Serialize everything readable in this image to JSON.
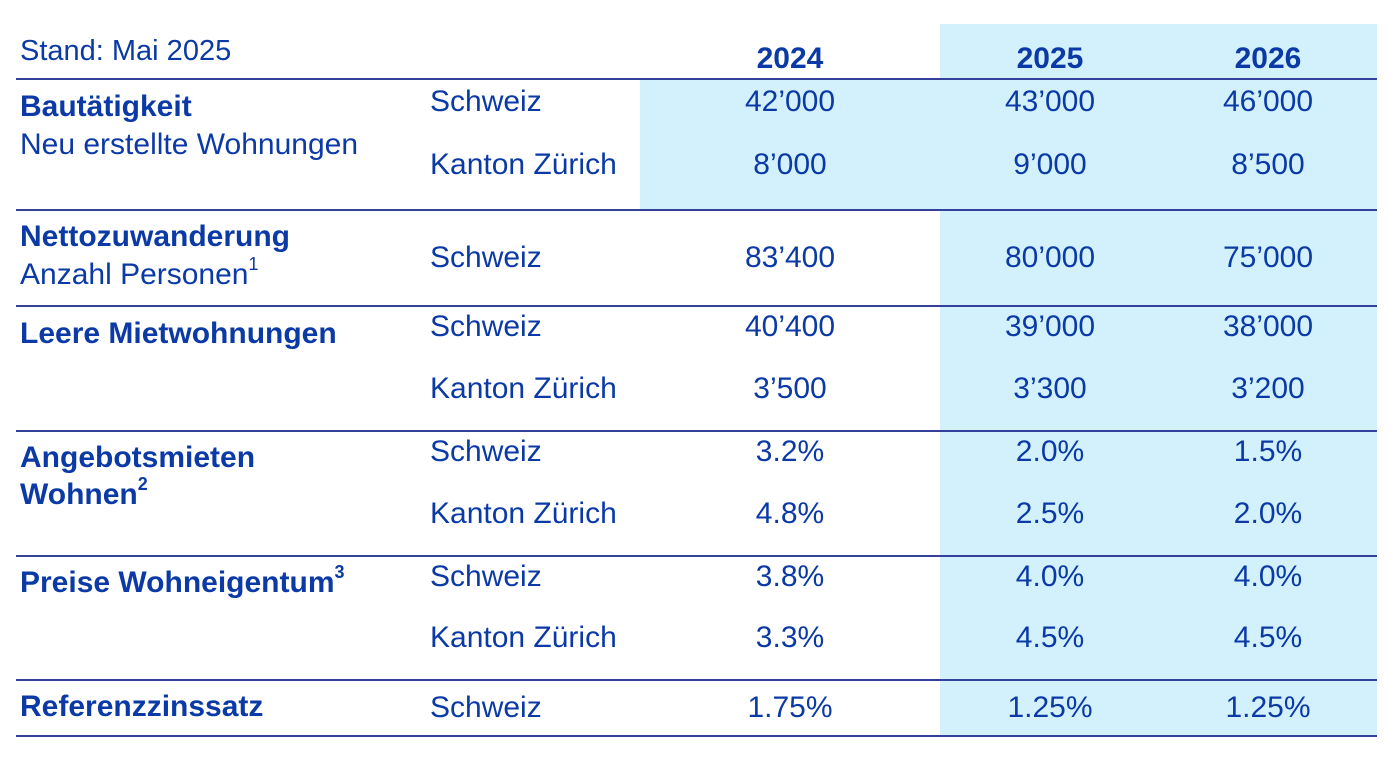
{
  "stand": "Stand: Mai 2025",
  "years": [
    "2024",
    "2025",
    "2026"
  ],
  "sections": [
    {
      "title": "Bautätigkeit",
      "subtitle": "Neu erstellte Wohnungen",
      "rows": [
        {
          "region": "Schweiz",
          "values": [
            "42’000",
            "43’000",
            "46’000"
          ]
        },
        {
          "region": "Kanton Zürich",
          "values": [
            "8’000",
            "9’000",
            "8’500"
          ]
        }
      ]
    },
    {
      "title": "Nettozuwanderung",
      "subtitle": "Anzahl Personen",
      "subtitle_sup": "1",
      "rows": [
        {
          "region": "Schweiz",
          "values": [
            "83’400",
            "80’000",
            "75’000"
          ]
        }
      ]
    },
    {
      "title": "Leere Mietwohnungen",
      "rows": [
        {
          "region": "Schweiz",
          "values": [
            "40’400",
            "39’000",
            "38’000"
          ]
        },
        {
          "region": "Kanton Zürich",
          "values": [
            "3’500",
            "3’300",
            "3’200"
          ]
        }
      ]
    },
    {
      "title": "Angebotsmieten",
      "title2": "Wohnen",
      "title2_sup": "2",
      "rows": [
        {
          "region": "Schweiz",
          "values": [
            "3.2%",
            "2.0%",
            "1.5%"
          ]
        },
        {
          "region": "Kanton Zürich",
          "values": [
            "4.8%",
            "2.5%",
            "2.0%"
          ]
        }
      ]
    },
    {
      "title": "Preise Wohneigentum",
      "title_sup": "3",
      "rows": [
        {
          "region": "Schweiz",
          "values": [
            "3.8%",
            "4.0%",
            "4.0%"
          ]
        },
        {
          "region": "Kanton Zürich",
          "values": [
            "3.3%",
            "4.5%",
            "4.5%"
          ]
        }
      ]
    },
    {
      "title": "Referenzzinssatz",
      "rows": [
        {
          "region": "Schweiz",
          "values": [
            "1.75%",
            "1.25%",
            "1.25%"
          ]
        }
      ]
    }
  ],
  "colors": {
    "text": "#0b3aa6",
    "highlight": "#d2f1fc",
    "rule": "#33419a"
  }
}
